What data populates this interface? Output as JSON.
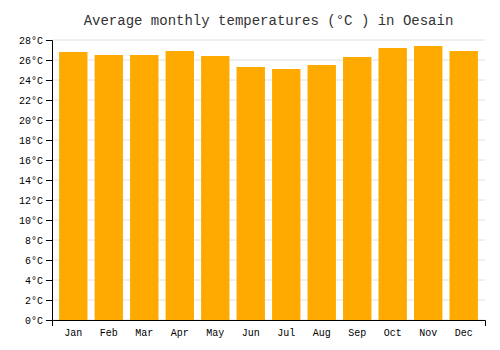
{
  "chart_data": {
    "type": "bar",
    "title": "Average monthly temperatures (°C ) in Oesain",
    "categories": [
      "Jan",
      "Feb",
      "Mar",
      "Apr",
      "May",
      "Jun",
      "Jul",
      "Aug",
      "Sep",
      "Oct",
      "Nov",
      "Dec"
    ],
    "values": [
      26.8,
      26.5,
      26.5,
      26.9,
      26.4,
      25.3,
      25.1,
      25.5,
      26.3,
      27.2,
      27.4,
      26.9
    ],
    "color": "#FFAA00",
    "ylim": [
      0,
      28
    ],
    "yticks": [
      {
        "value": 0,
        "label": "0°C"
      },
      {
        "value": 2,
        "label": "2°C"
      },
      {
        "value": 4,
        "label": "4°C"
      },
      {
        "value": 6,
        "label": "6°C"
      },
      {
        "value": 8,
        "label": "8°C"
      },
      {
        "value": 10,
        "label": "10°C"
      },
      {
        "value": 12,
        "label": "12°C"
      },
      {
        "value": 14,
        "label": "14°C"
      },
      {
        "value": 16,
        "label": "16°C"
      },
      {
        "value": 18,
        "label": "18°C"
      },
      {
        "value": 20,
        "label": "20°C"
      },
      {
        "value": 22,
        "label": "22°C"
      },
      {
        "value": 24,
        "label": "24°C"
      },
      {
        "value": 26,
        "label": "26°C"
      },
      {
        "value": 28,
        "label": "28°C"
      }
    ],
    "grid": true
  }
}
